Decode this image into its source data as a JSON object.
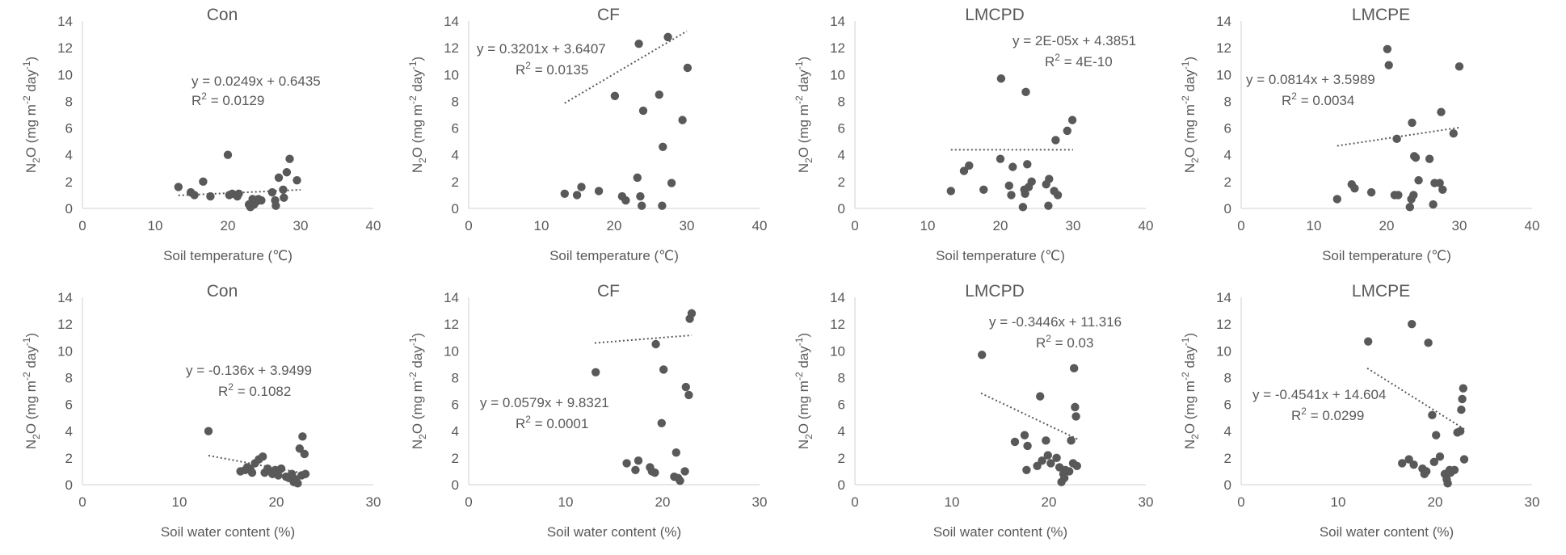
{
  "chart_data": [
    {
      "type": "scatter",
      "title": "Con",
      "xlabel": "Soil temperature (℃)",
      "ylabel_parts": [
        "N",
        "2",
        "O (mg m",
        "-2",
        " day",
        "-1",
        ")"
      ],
      "xlim": [
        0,
        40
      ],
      "ylim": [
        0,
        14
      ],
      "xticks": [
        0,
        10,
        20,
        30,
        40
      ],
      "yticks": [
        0,
        2,
        4,
        6,
        8,
        10,
        12,
        14
      ],
      "grid": false,
      "equation": "y = 0.0249x + 0.6435",
      "r2_label": "R",
      "r2_sup": "2",
      "r2_value": " = 0.0129",
      "trendline": {
        "slope": 0.0249,
        "intercept": 0.6435,
        "x_range": [
          13.2,
          30.0
        ]
      },
      "points": [
        [
          13.2,
          1.6
        ],
        [
          14.9,
          1.2
        ],
        [
          15.4,
          1.0
        ],
        [
          16.6,
          2.0
        ],
        [
          17.6,
          0.9
        ],
        [
          20.0,
          4.0
        ],
        [
          20.2,
          1.0
        ],
        [
          20.6,
          1.1
        ],
        [
          21.3,
          0.9
        ],
        [
          21.5,
          1.1
        ],
        [
          22.9,
          0.3
        ],
        [
          23.1,
          0.1
        ],
        [
          23.4,
          0.7
        ],
        [
          23.6,
          0.3
        ],
        [
          23.9,
          0.5
        ],
        [
          24.2,
          0.7
        ],
        [
          24.6,
          0.6
        ],
        [
          26.1,
          1.2
        ],
        [
          26.5,
          0.6
        ],
        [
          26.6,
          0.2
        ],
        [
          27.0,
          2.3
        ],
        [
          27.6,
          1.4
        ],
        [
          27.7,
          0.8
        ],
        [
          28.1,
          2.7
        ],
        [
          28.5,
          3.7
        ],
        [
          29.5,
          2.1
        ]
      ]
    },
    {
      "type": "scatter",
      "title": "CF",
      "xlabel": "Soil temperature (℃)",
      "ylabel_parts": [
        "N",
        "2",
        "O (mg m",
        "-2",
        " day",
        "-1",
        ")"
      ],
      "xlim": [
        0,
        40
      ],
      "ylim": [
        0,
        14
      ],
      "xticks": [
        0,
        10,
        20,
        30,
        40
      ],
      "yticks": [
        0,
        2,
        4,
        6,
        8,
        10,
        12,
        14
      ],
      "grid": false,
      "equation": "y = 0.3201x + 3.6407",
      "r2_label": "R",
      "r2_sup": "2",
      "r2_value": " = 0.0135",
      "trendline": {
        "slope": 0.3201,
        "intercept": 3.6407,
        "x_range": [
          13.2,
          30.0
        ]
      },
      "points": [
        [
          13.2,
          1.1
        ],
        [
          14.9,
          1.0
        ],
        [
          15.5,
          1.6
        ],
        [
          17.9,
          1.3
        ],
        [
          20.1,
          8.4
        ],
        [
          21.1,
          0.9
        ],
        [
          21.6,
          0.6
        ],
        [
          23.2,
          2.3
        ],
        [
          23.4,
          12.3
        ],
        [
          23.6,
          0.9
        ],
        [
          23.8,
          0.2
        ],
        [
          24.0,
          7.3
        ],
        [
          26.2,
          8.5
        ],
        [
          26.6,
          0.2
        ],
        [
          26.7,
          4.6
        ],
        [
          27.4,
          12.8
        ],
        [
          27.9,
          1.9
        ],
        [
          29.4,
          6.6
        ],
        [
          30.1,
          10.5
        ]
      ]
    },
    {
      "type": "scatter",
      "title": "LMCPD",
      "xlabel": "Soil temperature (℃)",
      "ylabel_parts": [
        "N",
        "2",
        "O (mg m",
        "-2",
        " day",
        "-1",
        ")"
      ],
      "xlim": [
        0,
        40
      ],
      "ylim": [
        0,
        14
      ],
      "xticks": [
        0,
        10,
        20,
        30,
        40
      ],
      "yticks": [
        0,
        2,
        4,
        6,
        8,
        10,
        12,
        14
      ],
      "grid": false,
      "equation": "y = 2E-05x + 4.3851",
      "r2_label": "R",
      "r2_sup": "2",
      "r2_value": " = 4E-10",
      "trendline": {
        "slope": 2e-05,
        "intercept": 4.3851,
        "x_range": [
          13.2,
          30.0
        ]
      },
      "points": [
        [
          13.2,
          1.3
        ],
        [
          15.0,
          2.8
        ],
        [
          15.7,
          3.2
        ],
        [
          17.7,
          1.4
        ],
        [
          20.0,
          3.7
        ],
        [
          20.1,
          9.7
        ],
        [
          21.2,
          1.7
        ],
        [
          21.5,
          1.0
        ],
        [
          21.7,
          3.1
        ],
        [
          23.1,
          0.1
        ],
        [
          23.3,
          1.4
        ],
        [
          23.4,
          1.1
        ],
        [
          23.5,
          8.7
        ],
        [
          23.7,
          3.3
        ],
        [
          23.9,
          1.6
        ],
        [
          24.3,
          2.0
        ],
        [
          26.3,
          1.8
        ],
        [
          26.6,
          0.2
        ],
        [
          26.7,
          2.2
        ],
        [
          27.4,
          1.3
        ],
        [
          27.6,
          5.1
        ],
        [
          27.9,
          1.0
        ],
        [
          29.2,
          5.8
        ],
        [
          29.9,
          6.6
        ]
      ]
    },
    {
      "type": "scatter",
      "title": "LMCPE",
      "xlabel": "Soil temperature (℃)",
      "ylabel_parts": [
        "N",
        "2",
        "O (mg m",
        "-2",
        " day",
        "-1",
        ")"
      ],
      "xlim": [
        0,
        40
      ],
      "ylim": [
        0,
        14
      ],
      "xticks": [
        0,
        10,
        20,
        30,
        40
      ],
      "yticks": [
        0,
        2,
        4,
        6,
        8,
        10,
        12,
        14
      ],
      "grid": false,
      "equation": "y = 0.0814x + 3.5989",
      "r2_label": "R",
      "r2_sup": "2",
      "r2_value": " = 0.0034",
      "trendline": {
        "slope": 0.0814,
        "intercept": 3.5989,
        "x_range": [
          13.2,
          30.0
        ]
      },
      "points": [
        [
          13.2,
          0.7
        ],
        [
          15.2,
          1.8
        ],
        [
          15.6,
          1.5
        ],
        [
          17.9,
          1.2
        ],
        [
          20.1,
          11.9
        ],
        [
          20.3,
          10.7
        ],
        [
          21.1,
          1.0
        ],
        [
          21.4,
          5.2
        ],
        [
          21.6,
          1.0
        ],
        [
          23.2,
          0.1
        ],
        [
          23.4,
          0.7
        ],
        [
          23.5,
          6.4
        ],
        [
          23.7,
          1.0
        ],
        [
          23.8,
          3.9
        ],
        [
          24.0,
          3.8
        ],
        [
          24.4,
          2.1
        ],
        [
          25.9,
          3.7
        ],
        [
          26.4,
          0.3
        ],
        [
          26.6,
          1.9
        ],
        [
          27.3,
          1.9
        ],
        [
          27.5,
          7.2
        ],
        [
          27.7,
          1.4
        ],
        [
          29.2,
          5.6
        ],
        [
          30.0,
          10.6
        ]
      ]
    },
    {
      "type": "scatter",
      "title": "Con",
      "xlabel": "Soil water content (%)",
      "ylabel_parts": [
        "N",
        "2",
        "O (mg m",
        "-2",
        " day",
        "-1",
        ")"
      ],
      "xlim": [
        0,
        30
      ],
      "ylim": [
        0,
        14
      ],
      "xticks": [
        0,
        10,
        20,
        30
      ],
      "yticks": [
        0,
        2,
        4,
        6,
        8,
        10,
        12,
        14
      ],
      "grid": false,
      "equation": "y = -0.136x + 3.9499",
      "r2_label": "R",
      "r2_sup": "2",
      "r2_value": " = 0.1082",
      "trendline": {
        "slope": -0.136,
        "intercept": 3.9499,
        "x_range": [
          13.0,
          23.0
        ]
      },
      "points": [
        [
          13.0,
          4.0
        ],
        [
          16.3,
          1.0
        ],
        [
          16.8,
          1.1
        ],
        [
          17.0,
          1.3
        ],
        [
          17.3,
          1.2
        ],
        [
          17.5,
          0.9
        ],
        [
          17.8,
          1.6
        ],
        [
          18.2,
          1.9
        ],
        [
          18.6,
          2.1
        ],
        [
          18.8,
          0.9
        ],
        [
          19.1,
          1.2
        ],
        [
          19.6,
          0.8
        ],
        [
          19.9,
          1.1
        ],
        [
          20.2,
          0.7
        ],
        [
          20.5,
          1.2
        ],
        [
          21.0,
          0.6
        ],
        [
          21.3,
          0.5
        ],
        [
          21.6,
          0.8
        ],
        [
          21.8,
          0.2
        ],
        [
          22.0,
          0.4
        ],
        [
          22.2,
          0.1
        ],
        [
          22.4,
          2.7
        ],
        [
          22.6,
          0.7
        ],
        [
          22.7,
          3.6
        ],
        [
          22.9,
          2.3
        ],
        [
          23.0,
          0.8
        ]
      ]
    },
    {
      "type": "scatter",
      "title": "CF",
      "xlabel": "Soil water content (%)",
      "ylabel_parts": [
        "N",
        "2",
        "O (mg m",
        "-2",
        " day",
        "-1",
        ")"
      ],
      "xlim": [
        0,
        30
      ],
      "ylim": [
        0,
        14
      ],
      "xticks": [
        0,
        10,
        20,
        30
      ],
      "yticks": [
        0,
        2,
        4,
        6,
        8,
        10,
        12,
        14
      ],
      "grid": false,
      "equation": "y = 0.0579x + 9.8321",
      "r2_label": "R",
      "r2_sup": "2",
      "r2_value": " = 0.0001",
      "trendline": {
        "slope": 0.0579,
        "intercept": 9.8321,
        "x_range": [
          13.0,
          23.0
        ]
      },
      "points": [
        [
          13.1,
          8.4
        ],
        [
          16.3,
          1.6
        ],
        [
          17.2,
          1.1
        ],
        [
          17.5,
          1.8
        ],
        [
          18.7,
          1.3
        ],
        [
          18.9,
          1.0
        ],
        [
          19.2,
          0.9
        ],
        [
          19.3,
          10.5
        ],
        [
          19.9,
          4.6
        ],
        [
          20.1,
          8.6
        ],
        [
          21.4,
          2.4
        ],
        [
          21.6,
          0.5
        ],
        [
          21.8,
          0.3
        ],
        [
          22.3,
          1.0
        ],
        [
          22.4,
          7.3
        ],
        [
          22.7,
          6.7
        ],
        [
          22.8,
          12.4
        ],
        [
          23.0,
          12.8
        ],
        [
          21.2,
          0.6
        ]
      ]
    },
    {
      "type": "scatter",
      "title": "LMCPD",
      "xlabel": "Soil water content (%)",
      "ylabel_parts": [
        "N",
        "2",
        "O (mg m",
        "-2",
        " day",
        "-1",
        ")"
      ],
      "xlim": [
        0,
        30
      ],
      "ylim": [
        0,
        14
      ],
      "xticks": [
        0,
        10,
        20,
        30
      ],
      "yticks": [
        0,
        2,
        4,
        6,
        8,
        10,
        12,
        14
      ],
      "grid": false,
      "equation": "y = -0.3446x + 11.316",
      "r2_label": "R",
      "r2_sup": "2",
      "r2_value": " = 0.03",
      "trendline": {
        "slope": -0.3446,
        "intercept": 11.316,
        "x_range": [
          13.0,
          23.0
        ]
      },
      "points": [
        [
          13.1,
          9.7
        ],
        [
          16.5,
          3.2
        ],
        [
          17.5,
          3.7
        ],
        [
          17.7,
          1.1
        ],
        [
          17.8,
          2.9
        ],
        [
          18.8,
          1.4
        ],
        [
          19.1,
          6.6
        ],
        [
          19.3,
          1.8
        ],
        [
          19.7,
          3.3
        ],
        [
          19.9,
          2.2
        ],
        [
          20.2,
          1.6
        ],
        [
          20.8,
          2.0
        ],
        [
          21.1,
          1.3
        ],
        [
          21.3,
          0.2
        ],
        [
          21.5,
          0.8
        ],
        [
          21.7,
          1.1
        ],
        [
          22.1,
          1.0
        ],
        [
          22.3,
          3.3
        ],
        [
          22.5,
          1.6
        ],
        [
          22.6,
          8.7
        ],
        [
          22.7,
          5.8
        ],
        [
          22.8,
          5.1
        ],
        [
          22.9,
          1.4
        ],
        [
          21.6,
          0.5
        ]
      ]
    },
    {
      "type": "scatter",
      "title": "LMCPE",
      "xlabel": "Soil water content (%)",
      "ylabel_parts": [
        "N",
        "2",
        "O (mg m",
        "-2",
        " day",
        "-1",
        ")"
      ],
      "xlim": [
        0,
        30
      ],
      "ylim": [
        0,
        14
      ],
      "xticks": [
        0,
        10,
        20,
        30
      ],
      "yticks": [
        0,
        2,
        4,
        6,
        8,
        10,
        12,
        14
      ],
      "grid": false,
      "equation": "y = -0.4541x + 14.604",
      "r2_label": "R",
      "r2_sup": "2",
      "r2_value": " = 0.0299",
      "trendline": {
        "slope": -0.4541,
        "intercept": 14.604,
        "x_range": [
          13.0,
          23.0
        ]
      },
      "points": [
        [
          13.1,
          10.7
        ],
        [
          16.6,
          1.6
        ],
        [
          17.3,
          1.9
        ],
        [
          17.6,
          12.0
        ],
        [
          17.8,
          1.5
        ],
        [
          18.7,
          1.2
        ],
        [
          18.9,
          0.8
        ],
        [
          19.1,
          1.0
        ],
        [
          19.3,
          10.6
        ],
        [
          19.7,
          5.2
        ],
        [
          19.9,
          1.7
        ],
        [
          20.1,
          3.7
        ],
        [
          20.5,
          2.1
        ],
        [
          21.0,
          0.8
        ],
        [
          21.2,
          0.4
        ],
        [
          21.3,
          0.1
        ],
        [
          21.5,
          1.1
        ],
        [
          21.6,
          0.9
        ],
        [
          22.0,
          1.1
        ],
        [
          22.3,
          3.9
        ],
        [
          22.6,
          4.0
        ],
        [
          22.7,
          5.6
        ],
        [
          22.8,
          6.4
        ],
        [
          22.9,
          7.2
        ],
        [
          23.0,
          1.9
        ]
      ]
    }
  ]
}
